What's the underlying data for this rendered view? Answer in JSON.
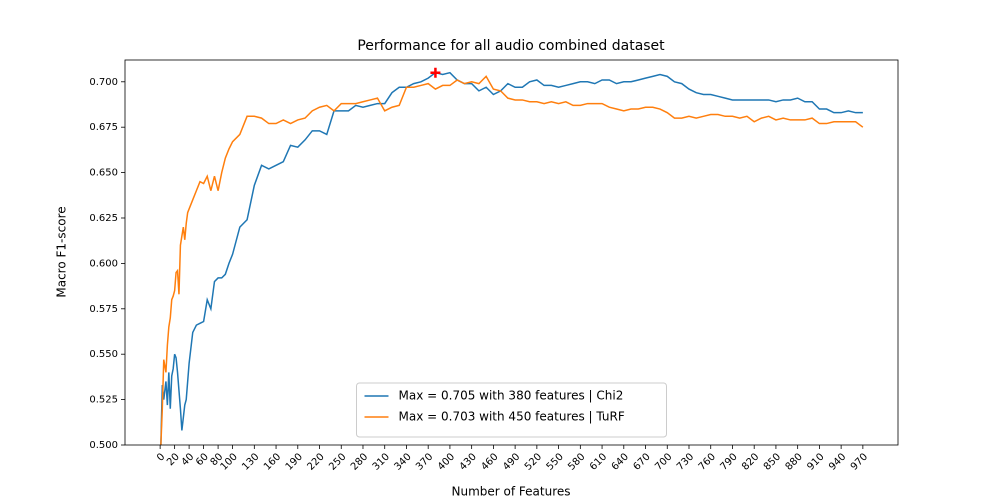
{
  "chart_data": {
    "type": "line",
    "title": "Performance for all audio combined dataset",
    "xlabel": "Number of Features",
    "ylabel": "Macro F1-score",
    "x": [
      1,
      3,
      5,
      8,
      10,
      12,
      14,
      16,
      18,
      20,
      22,
      24,
      26,
      28,
      30,
      32,
      34,
      36,
      38,
      40,
      45,
      50,
      55,
      60,
      65,
      70,
      75,
      80,
      85,
      90,
      95,
      100,
      110,
      120,
      130,
      140,
      150,
      160,
      170,
      180,
      190,
      200,
      210,
      220,
      230,
      240,
      250,
      260,
      270,
      280,
      290,
      300,
      310,
      320,
      330,
      340,
      350,
      360,
      370,
      380,
      390,
      400,
      410,
      420,
      430,
      440,
      450,
      460,
      470,
      480,
      490,
      500,
      510,
      520,
      530,
      540,
      550,
      560,
      570,
      580,
      590,
      600,
      610,
      620,
      630,
      640,
      650,
      660,
      670,
      680,
      690,
      700,
      710,
      720,
      730,
      740,
      750,
      760,
      770,
      780,
      790,
      800,
      810,
      820,
      830,
      840,
      850,
      860,
      870,
      880,
      890,
      900,
      910,
      920,
      930,
      940,
      950,
      960,
      970
    ],
    "series": [
      {
        "name": "Max = 0.705 with 380 features | Chi2",
        "color": "#1f77b4",
        "values": [
          0.5,
          0.533,
          0.525,
          0.535,
          0.522,
          0.54,
          0.52,
          0.538,
          0.542,
          0.55,
          0.548,
          0.54,
          0.53,
          0.52,
          0.508,
          0.515,
          0.522,
          0.525,
          0.535,
          0.545,
          0.562,
          0.566,
          0.567,
          0.568,
          0.58,
          0.575,
          0.59,
          0.592,
          0.592,
          0.594,
          0.6,
          0.605,
          0.62,
          0.624,
          0.643,
          0.654,
          0.652,
          0.654,
          0.656,
          0.665,
          0.664,
          0.668,
          0.673,
          0.673,
          0.671,
          0.684,
          0.684,
          0.684,
          0.687,
          0.686,
          0.687,
          0.688,
          0.688,
          0.694,
          0.697,
          0.697,
          0.699,
          0.7,
          0.702,
          0.705,
          0.704,
          0.705,
          0.701,
          0.699,
          0.699,
          0.695,
          0.697,
          0.693,
          0.695,
          0.699,
          0.697,
          0.697,
          0.7,
          0.701,
          0.698,
          0.698,
          0.697,
          0.698,
          0.699,
          0.7,
          0.7,
          0.699,
          0.701,
          0.701,
          0.699,
          0.7,
          0.7,
          0.701,
          0.702,
          0.703,
          0.704,
          0.703,
          0.7,
          0.699,
          0.696,
          0.694,
          0.693,
          0.693,
          0.692,
          0.691,
          0.69,
          0.69,
          0.69,
          0.69,
          0.69,
          0.69,
          0.689,
          0.69,
          0.69,
          0.691,
          0.689,
          0.689,
          0.685,
          0.685,
          0.683,
          0.683,
          0.684,
          0.683,
          0.683
        ]
      },
      {
        "name": "Max = 0.703 with 450 features | TuRF",
        "color": "#ff7f0e",
        "values": [
          0.5,
          0.52,
          0.547,
          0.54,
          0.555,
          0.565,
          0.57,
          0.58,
          0.582,
          0.585,
          0.595,
          0.596,
          0.583,
          0.61,
          0.615,
          0.62,
          0.613,
          0.622,
          0.628,
          0.63,
          0.635,
          0.64,
          0.645,
          0.644,
          0.648,
          0.64,
          0.648,
          0.64,
          0.65,
          0.658,
          0.663,
          0.667,
          0.671,
          0.681,
          0.681,
          0.68,
          0.677,
          0.677,
          0.679,
          0.677,
          0.679,
          0.68,
          0.684,
          0.686,
          0.687,
          0.684,
          0.688,
          0.688,
          0.688,
          0.689,
          0.69,
          0.691,
          0.684,
          0.686,
          0.687,
          0.697,
          0.697,
          0.698,
          0.699,
          0.696,
          0.698,
          0.698,
          0.701,
          0.699,
          0.7,
          0.699,
          0.703,
          0.696,
          0.695,
          0.691,
          0.69,
          0.69,
          0.689,
          0.689,
          0.688,
          0.689,
          0.688,
          0.689,
          0.687,
          0.687,
          0.688,
          0.688,
          0.688,
          0.686,
          0.685,
          0.684,
          0.685,
          0.685,
          0.686,
          0.686,
          0.685,
          0.683,
          0.68,
          0.68,
          0.681,
          0.68,
          0.681,
          0.682,
          0.682,
          0.681,
          0.681,
          0.68,
          0.681,
          0.678,
          0.68,
          0.681,
          0.679,
          0.68,
          0.679,
          0.679,
          0.679,
          0.68,
          0.677,
          0.677,
          0.678,
          0.678,
          0.678,
          0.678,
          0.675
        ]
      }
    ],
    "max_marker": {
      "x": 380,
      "y": 0.705,
      "color": "#ff0000"
    },
    "xlim": [
      -48.5,
      1018.5
    ],
    "xticks": [
      0,
      20,
      40,
      60,
      80,
      100,
      130,
      160,
      190,
      220,
      250,
      280,
      310,
      340,
      370,
      400,
      430,
      460,
      490,
      520,
      550,
      580,
      610,
      640,
      670,
      700,
      730,
      760,
      790,
      820,
      850,
      880,
      910,
      940,
      970
    ],
    "ylim": [
      0.5,
      0.712
    ],
    "yticks": [
      {
        "value": 0.5,
        "label": "0.500"
      },
      {
        "value": 0.525,
        "label": "0.525"
      },
      {
        "value": 0.55,
        "label": "0.550"
      },
      {
        "value": 0.575,
        "label": "0.575"
      },
      {
        "value": 0.6,
        "label": "0.600"
      },
      {
        "value": 0.625,
        "label": "0.625"
      },
      {
        "value": 0.65,
        "label": "0.650"
      },
      {
        "value": 0.675,
        "label": "0.675"
      },
      {
        "value": 0.7,
        "label": "0.700"
      }
    ],
    "legend": "lower center"
  }
}
